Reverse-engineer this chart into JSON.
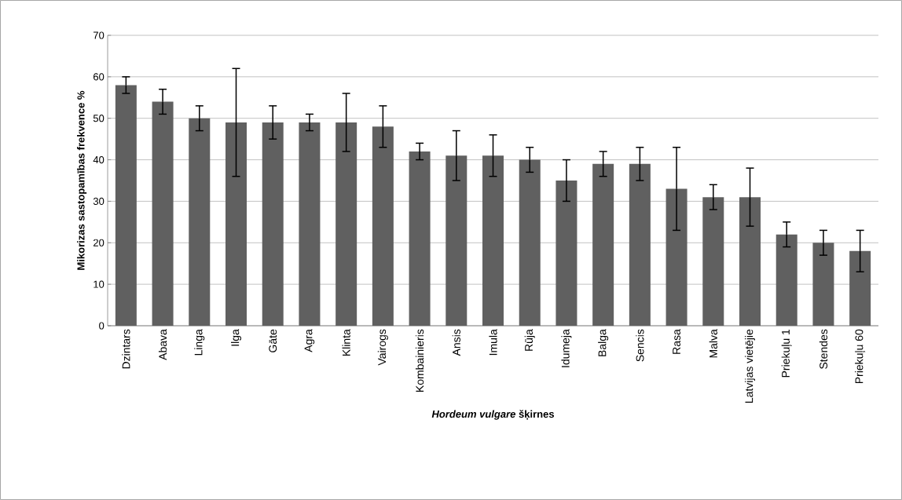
{
  "chart_data": {
    "type": "bar",
    "xlabel": "*Hordeum vulgare* šķirnes",
    "ylabel": "Mikorizas sastopamības frekvence %",
    "categories": [
      "Dzintars",
      "Abava",
      "Linga",
      "Ilga",
      "Gāte",
      "Agra",
      "Klinta",
      "Vairogs",
      "Kombainieris",
      "Ansis",
      "Imula",
      "Rūja",
      "Idumeja",
      "Balga",
      "Sencis",
      "Rasa",
      "Malva",
      "Latvijas vietējie",
      "Priekuļu 1",
      "Stendes",
      "Priekuļu 60"
    ],
    "values": [
      58,
      54,
      50,
      49,
      49,
      49,
      49,
      48,
      42,
      41,
      41,
      40,
      35,
      39,
      39,
      33,
      31,
      31,
      22,
      20,
      18
    ],
    "errors": [
      2,
      3,
      3,
      13,
      4,
      2,
      7,
      5,
      2,
      6,
      5,
      3,
      5,
      3,
      4,
      10,
      3,
      7,
      3,
      3,
      5
    ],
    "color": "#606060",
    "ylim": [
      0,
      70
    ],
    "yticks": [
      0,
      10,
      20,
      30,
      40,
      50,
      60,
      70
    ],
    "grid": "y"
  }
}
